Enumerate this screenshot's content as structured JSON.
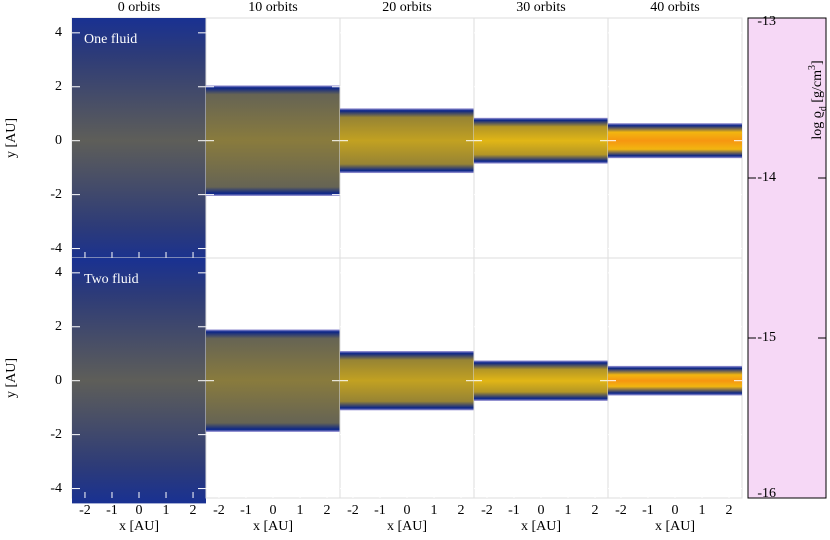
{
  "chart_data": {
    "type": "heatmap",
    "columns": [
      "0 orbits",
      "10 orbits",
      "20 orbits",
      "30 orbits",
      "40 orbits"
    ],
    "rows": [
      {
        "name": "One fluid",
        "half_thickness": [
          4.55,
          2.05,
          1.2,
          0.85,
          0.65
        ],
        "peak": [
          -14.1,
          -13.9,
          -13.7,
          -13.6,
          -13.35
        ]
      },
      {
        "name": "Two fluid",
        "half_thickness": [
          4.55,
          1.9,
          1.1,
          0.75,
          0.55
        ],
        "peak": [
          -14.1,
          -13.9,
          -13.7,
          -13.6,
          -13.35
        ]
      }
    ],
    "xlabel": "x [AU]",
    "ylabel": "y [AU]",
    "xlim": [
      -2.48,
      2.48
    ],
    "xticks": [
      -2,
      -1,
      0,
      1,
      2
    ],
    "ylim": [
      -4.35,
      4.55
    ],
    "yticks": [
      -4,
      -2,
      0,
      2,
      4
    ],
    "colorbar": {
      "label": [
        "log ϱ",
        "d",
        " [g/cm",
        "3",
        "]"
      ],
      "lim": [
        -16,
        -13
      ],
      "ticks": [
        -16,
        -15,
        -14,
        -13
      ],
      "colormap": [
        {
          "value": -16,
          "color": "#f6d8f6"
        },
        {
          "value": -15.4,
          "color": "#a8a0dc"
        },
        {
          "value": -15,
          "color": "#4858b0"
        },
        {
          "value": -14.6,
          "color": "#0a2488"
        },
        {
          "value": -14.3,
          "color": "#3e4670"
        },
        {
          "value": -14,
          "color": "#6e6a4e"
        },
        {
          "value": -13.8,
          "color": "#a48c2c"
        },
        {
          "value": -13.55,
          "color": "#f0c010"
        },
        {
          "value": -13.3,
          "color": "#f88c10"
        },
        {
          "value": -13,
          "color": "#ff2000"
        }
      ]
    }
  }
}
